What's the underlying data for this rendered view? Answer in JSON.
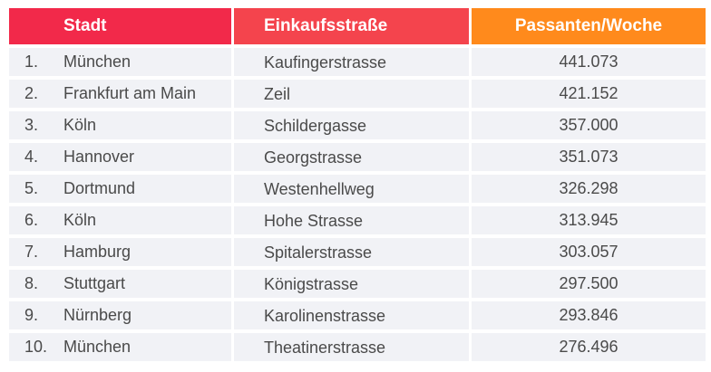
{
  "chart_data": {
    "type": "table",
    "columns": [
      "Stadt",
      "Einkaufsstraße",
      "Passanten/Woche"
    ],
    "rows": [
      {
        "rank": "1.",
        "city": "München",
        "street": "Kaufingerstrasse",
        "value": "441.073"
      },
      {
        "rank": "2.",
        "city": "Frankfurt am Main",
        "street": "Zeil",
        "value": "421.152"
      },
      {
        "rank": "3.",
        "city": "Köln",
        "street": "Schildergasse",
        "value": "357.000"
      },
      {
        "rank": "4.",
        "city": "Hannover",
        "street": "Georgstrasse",
        "value": "351.073"
      },
      {
        "rank": "5.",
        "city": "Dortmund",
        "street": "Westenhellweg",
        "value": "326.298"
      },
      {
        "rank": "6.",
        "city": "Köln",
        "street": "Hohe Strasse",
        "value": "313.945"
      },
      {
        "rank": "7.",
        "city": "Hamburg",
        "street": "Spitalerstrasse",
        "value": "303.057"
      },
      {
        "rank": "8.",
        "city": "Stuttgart",
        "street": "Königstrasse",
        "value": "297.500"
      },
      {
        "rank": "9.",
        "city": "Nürnberg",
        "street": "Karolinenstrasse",
        "value": "293.846"
      },
      {
        "rank": "10.",
        "city": "München",
        "street": "Theatinerstrasse",
        "value": "276.496"
      }
    ]
  },
  "colors": {
    "header_city": "#f2294a",
    "header_street": "#f4444d",
    "header_value": "#ff8a1c",
    "row_background": "#f1f2f6",
    "text": "#4a4a4a"
  }
}
